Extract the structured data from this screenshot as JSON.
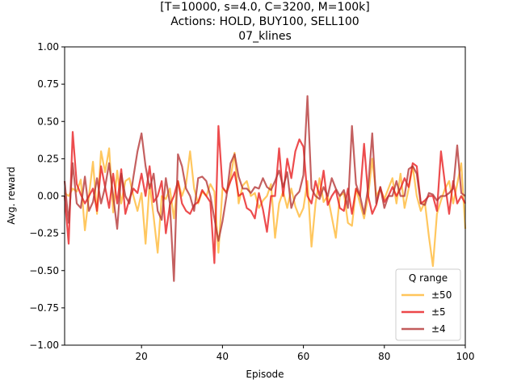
{
  "chart_data": {
    "type": "line",
    "title_lines": [
      "[T=10000, s=4.0, C=3200, M=100k]",
      "Actions: HOLD, BUY100, SELL100",
      "07_klines"
    ],
    "xlabel": "Episode",
    "ylabel": "Avg. reward",
    "xlim": [
      1,
      100
    ],
    "ylim": [
      -1.0,
      1.0
    ],
    "xticks": [
      20,
      40,
      60,
      80,
      100
    ],
    "xtick_labels": [
      "20",
      "40",
      "60",
      "80",
      "100"
    ],
    "yticks": [
      -1.0,
      -0.75,
      -0.5,
      -0.25,
      0.0,
      0.25,
      0.5,
      0.75,
      1.0
    ],
    "ytick_labels": [
      "−1.00",
      "−0.75",
      "−0.50",
      "−0.25",
      "0.00",
      "0.25",
      "0.50",
      "0.75",
      "1.00"
    ],
    "grid": false,
    "legend": {
      "title": "Q range",
      "placement": "lower-right"
    },
    "series": [
      {
        "name": "±50",
        "color": "#ffb732",
        "values": [
          0.02,
          0.0,
          0.05,
          0.03,
          0.11,
          -0.23,
          0.0,
          0.23,
          -0.12,
          0.3,
          0.16,
          0.32,
          -0.11,
          0.17,
          -0.05,
          0.1,
          0.12,
          0.0,
          -0.1,
          0.02,
          -0.32,
          0.08,
          -0.14,
          -0.38,
          0.0,
          -0.02,
          0.05,
          -0.15,
          0.1,
          0.0,
          0.08,
          0.3,
          0.05,
          -0.05,
          0.03,
          0.0,
          0.08,
          0.03,
          -0.38,
          0.05,
          0.03,
          0.12,
          0.29,
          -0.05,
          0.07,
          0.1,
          0.0,
          0.02,
          -0.08,
          -0.03,
          0.0,
          0.08,
          -0.28,
          -0.05,
          0.03,
          -0.08,
          0.05,
          -0.07,
          -0.14,
          -0.08,
          0.1,
          -0.34,
          -0.05,
          0.12,
          -0.04,
          0.0,
          -0.14,
          -0.28,
          0.0,
          0.02,
          -0.18,
          -0.2,
          0.05,
          -0.05,
          -0.15,
          0.0,
          0.25,
          0.0,
          0.05,
          -0.02,
          0.05,
          0.12,
          -0.05,
          0.15,
          -0.08,
          0.05,
          0.2,
          0.0,
          -0.1,
          -0.04,
          -0.27,
          -0.47,
          -0.12,
          -0.03,
          0.05,
          0.1,
          -0.05,
          0.08,
          0.22,
          -0.22
        ]
      },
      {
        "name": "±5",
        "color": "#e8191c",
        "values": [
          0.0,
          -0.32,
          0.43,
          0.08,
          0.01,
          -0.05,
          0.0,
          0.05,
          -0.1,
          0.2,
          0.06,
          -0.08,
          0.15,
          -0.05,
          0.18,
          -0.12,
          -0.02,
          0.05,
          0.02,
          0.15,
          0.0,
          0.2,
          -0.04,
          0.0,
          0.1,
          -0.25,
          -0.06,
          0.0,
          0.1,
          -0.05,
          -0.1,
          -0.12,
          -0.06,
          -0.04,
          0.04,
          0.0,
          -0.04,
          -0.45,
          0.47,
          0.06,
          0.02,
          0.1,
          0.16,
          0.0,
          0.02,
          -0.08,
          -0.1,
          -0.15,
          0.02,
          -0.09,
          -0.24,
          0.0,
          0.0,
          0.32,
          0.0,
          0.25,
          0.12,
          0.3,
          0.38,
          0.33,
          0.0,
          -0.05,
          0.1,
          0.0,
          0.17,
          -0.06,
          0.0,
          0.04,
          -0.08,
          -0.1,
          0.05,
          -0.12,
          0.05,
          0.0,
          0.35,
          0.0,
          -0.12,
          -0.06,
          0.06,
          -0.04,
          0.0,
          0.06,
          0.0,
          0.05,
          0.12,
          0.06,
          0.22,
          0.2,
          -0.05,
          -0.03,
          0.0,
          0.0,
          -0.1,
          0.3,
          0.08,
          -0.12,
          0.1,
          -0.05,
          0.0,
          -0.05
        ]
      },
      {
        "name": "±4",
        "color": "#b33333",
        "values": [
          0.1,
          -0.18,
          0.22,
          -0.05,
          -0.08,
          0.13,
          -0.1,
          -0.04,
          0.12,
          -0.05,
          0.06,
          0.22,
          0.0,
          -0.22,
          0.15,
          0.0,
          -0.05,
          0.13,
          0.3,
          0.42,
          0.2,
          0.05,
          0.15,
          -0.1,
          -0.16,
          0.12,
          -0.05,
          -0.57,
          0.28,
          0.2,
          0.05,
          0.0,
          -0.1,
          0.12,
          0.13,
          0.1,
          0.0,
          -0.15,
          -0.3,
          -0.17,
          0.0,
          0.22,
          0.28,
          0.13,
          0.05,
          0.05,
          0.02,
          0.06,
          0.05,
          0.12,
          0.06,
          0.04,
          0.1,
          0.17,
          0.06,
          0.16,
          -0.08,
          0.0,
          0.03,
          0.14,
          0.67,
          0.05,
          0.0,
          -0.02,
          0.06,
          0.0,
          0.12,
          0.05,
          0.0,
          0.04,
          -0.08,
          0.47,
          0.08,
          0.0,
          -0.12,
          0.06,
          0.42,
          -0.05,
          0.06,
          -0.08,
          0.0,
          0.0,
          0.1,
          0.0,
          0.0,
          0.18,
          0.2,
          0.15,
          -0.05,
          -0.06,
          0.02,
          0.01,
          -0.03,
          0.0,
          0.0,
          0.02,
          0.05,
          0.34,
          0.02,
          0.0
        ]
      }
    ]
  }
}
